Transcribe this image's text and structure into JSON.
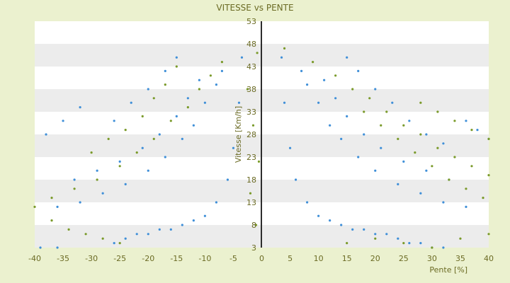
{
  "chart_data": {
    "type": "scatter",
    "title": "VITESSE vs PENTE",
    "xlabel": "Pente [%]",
    "ylabel": "Vitesse [Km/h]",
    "xlim": [
      -40,
      40
    ],
    "ylim": [
      3,
      53
    ],
    "x_ticks": [
      -40,
      -35,
      -30,
      -25,
      -20,
      -15,
      -10,
      -5,
      0,
      5,
      10,
      15,
      20,
      25,
      30,
      35,
      40
    ],
    "y_ticks": [
      3,
      8,
      13,
      18,
      23,
      28,
      33,
      38,
      43,
      48,
      53
    ],
    "grid": "horizontal bands",
    "legend": "none",
    "colors": {
      "background": "#ebf1cf",
      "plot_band_light": "#ffffff",
      "plot_band_dark": "#ececec",
      "text": "#6b6b24",
      "series_primary": "#3f8fd8",
      "series_secondary": "#7a9a2a"
    },
    "series": [
      {
        "color": "#3f8fd8",
        "points": [
          [
            -39,
            3
          ],
          [
            -36,
            3
          ],
          [
            -26,
            4
          ],
          [
            -24,
            5
          ],
          [
            -22,
            6
          ],
          [
            -20,
            6
          ],
          [
            -18,
            7
          ],
          [
            -16,
            7
          ],
          [
            -14,
            8
          ],
          [
            -12,
            9
          ],
          [
            -10,
            10
          ],
          [
            -8,
            13
          ],
          [
            -6,
            18
          ],
          [
            -5,
            25
          ],
          [
            -4,
            35
          ],
          [
            -3.5,
            45
          ],
          [
            -36,
            12
          ],
          [
            -32,
            13
          ],
          [
            -28,
            15
          ],
          [
            -24,
            17
          ],
          [
            -20,
            20
          ],
          [
            -17,
            23
          ],
          [
            -14,
            27
          ],
          [
            -12,
            30
          ],
          [
            -10,
            35
          ],
          [
            -8,
            39
          ],
          [
            -7,
            42
          ],
          [
            -33,
            18
          ],
          [
            -29,
            20
          ],
          [
            -25,
            22
          ],
          [
            -21,
            25
          ],
          [
            -18,
            28
          ],
          [
            -15,
            32
          ],
          [
            -13,
            36
          ],
          [
            -11,
            40
          ],
          [
            -26,
            31
          ],
          [
            -23,
            35
          ],
          [
            -20,
            38
          ],
          [
            -17,
            42
          ],
          [
            -15,
            45
          ],
          [
            -38,
            28
          ],
          [
            -35,
            31
          ],
          [
            -32,
            34
          ],
          [
            3.5,
            45
          ],
          [
            4,
            35
          ],
          [
            5,
            25
          ],
          [
            6,
            18
          ],
          [
            8,
            13
          ],
          [
            10,
            10
          ],
          [
            12,
            9
          ],
          [
            14,
            8
          ],
          [
            16,
            7
          ],
          [
            18,
            7
          ],
          [
            20,
            6
          ],
          [
            22,
            6
          ],
          [
            24,
            5
          ],
          [
            26,
            4
          ],
          [
            28,
            4
          ],
          [
            30,
            3
          ],
          [
            32,
            3
          ],
          [
            7,
            42
          ],
          [
            8,
            39
          ],
          [
            10,
            35
          ],
          [
            12,
            30
          ],
          [
            14,
            27
          ],
          [
            17,
            23
          ],
          [
            20,
            20
          ],
          [
            24,
            17
          ],
          [
            28,
            15
          ],
          [
            32,
            13
          ],
          [
            36,
            12
          ],
          [
            11,
            40
          ],
          [
            13,
            36
          ],
          [
            15,
            32
          ],
          [
            18,
            28
          ],
          [
            21,
            25
          ],
          [
            25,
            22
          ],
          [
            29,
            20
          ],
          [
            33,
            18
          ],
          [
            15,
            45
          ],
          [
            17,
            42
          ],
          [
            20,
            38
          ],
          [
            23,
            35
          ],
          [
            26,
            31
          ],
          [
            29,
            28
          ],
          [
            32,
            26
          ],
          [
            36,
            31
          ],
          [
            38,
            29
          ],
          [
            40,
            27
          ]
        ]
      },
      {
        "color": "#7a9a2a",
        "points": [
          [
            -40,
            12
          ],
          [
            -37,
            9
          ],
          [
            -34,
            7
          ],
          [
            -31,
            6
          ],
          [
            -28,
            5
          ],
          [
            -25,
            4
          ],
          [
            -37,
            14
          ],
          [
            -33,
            16
          ],
          [
            -29,
            18
          ],
          [
            -25,
            21
          ],
          [
            -22,
            24
          ],
          [
            -19,
            27
          ],
          [
            -16,
            31
          ],
          [
            -13,
            34
          ],
          [
            -11,
            38
          ],
          [
            -9,
            41
          ],
          [
            -7,
            44
          ],
          [
            -30,
            24
          ],
          [
            -27,
            27
          ],
          [
            -24,
            29
          ],
          [
            -21,
            32
          ],
          [
            -19,
            36
          ],
          [
            -17,
            39
          ],
          [
            -15,
            43
          ],
          [
            -1,
            8
          ],
          [
            -2,
            15
          ],
          [
            -0.5,
            22
          ],
          [
            -1.5,
            30
          ],
          [
            -2.5,
            38
          ],
          [
            -0.8,
            46
          ],
          [
            4,
            47
          ],
          [
            9,
            44
          ],
          [
            13,
            41
          ],
          [
            16,
            38
          ],
          [
            18,
            33
          ],
          [
            21,
            30
          ],
          [
            24,
            27
          ],
          [
            27,
            24
          ],
          [
            30,
            21
          ],
          [
            33,
            18
          ],
          [
            36,
            16
          ],
          [
            39,
            14
          ],
          [
            19,
            36
          ],
          [
            22,
            33
          ],
          [
            25,
            30
          ],
          [
            28,
            28
          ],
          [
            31,
            25
          ],
          [
            34,
            23
          ],
          [
            37,
            21
          ],
          [
            40,
            19
          ],
          [
            28,
            35
          ],
          [
            31,
            33
          ],
          [
            34,
            31
          ],
          [
            37,
            29
          ],
          [
            40,
            27
          ],
          [
            15,
            4
          ],
          [
            20,
            5
          ],
          [
            25,
            4
          ],
          [
            30,
            3
          ],
          [
            35,
            5
          ],
          [
            40,
            6
          ]
        ]
      }
    ]
  }
}
